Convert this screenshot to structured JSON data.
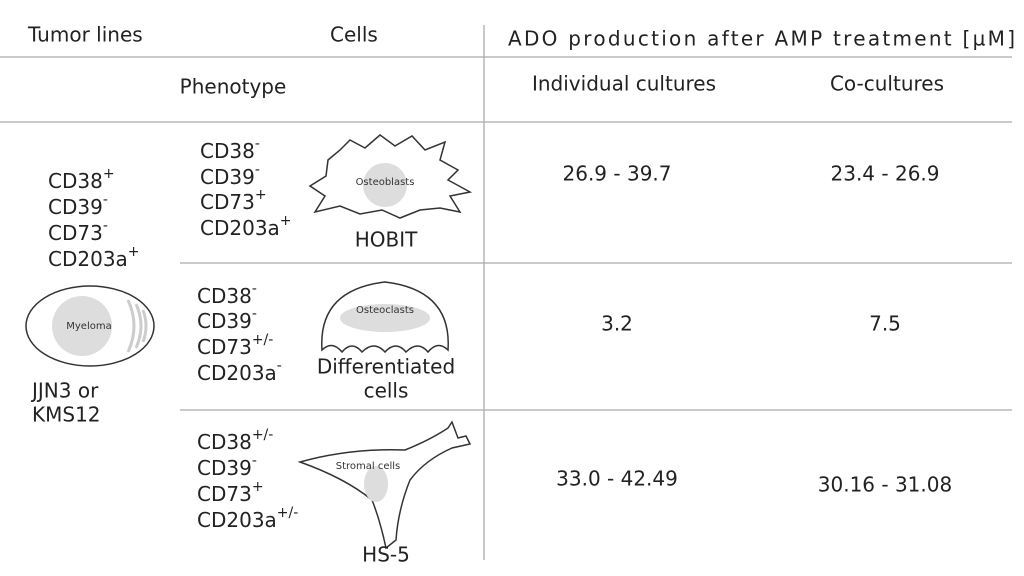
{
  "header": {
    "tumor_lines": "Tumor lines",
    "cells": "Cells",
    "ado": "ADO production after  AMP treatment [µM]",
    "phenotype": "Phenotype",
    "individual": "Individual cultures",
    "co": "Co-cultures"
  },
  "tumor": {
    "markers": [
      {
        "name": "CD38",
        "sup": "+"
      },
      {
        "name": "CD39",
        "sup": "-"
      },
      {
        "name": "CD73",
        "sup": "-"
      },
      {
        "name": "CD203a",
        "sup": "+"
      }
    ],
    "shape_label": "Myeloma",
    "lines": [
      "JJN3 or",
      "KMS12"
    ]
  },
  "rows": [
    {
      "markers": [
        {
          "name": "CD38",
          "sup": "-"
        },
        {
          "name": "CD39",
          "sup": "-"
        },
        {
          "name": "CD73",
          "sup": "+"
        },
        {
          "name": "CD203a",
          "sup": "+"
        }
      ],
      "shape_label": "Osteoblasts",
      "cell_name": [
        "HOBIT"
      ],
      "individual": "26.9 - 39.7",
      "co": "23.4 - 26.9"
    },
    {
      "markers": [
        {
          "name": "CD38",
          "sup": "-"
        },
        {
          "name": "CD39",
          "sup": "-"
        },
        {
          "name": "CD73",
          "sup": "+/-"
        },
        {
          "name": "CD203a",
          "sup": "-"
        }
      ],
      "shape_label": "Osteoclasts",
      "cell_name": [
        "Differentiated",
        "cells"
      ],
      "individual": "3.2",
      "co": "7.5"
    },
    {
      "markers": [
        {
          "name": "CD38",
          "sup": "+/-"
        },
        {
          "name": "CD39",
          "sup": "-"
        },
        {
          "name": "CD73",
          "sup": "+"
        },
        {
          "name": "CD203a",
          "sup": "+/-"
        }
      ],
      "shape_label": "Stromal cells",
      "cell_name": [
        "HS-5"
      ],
      "individual": "33.0 - 42.49",
      "co": "30.16 - 31.08"
    }
  ]
}
